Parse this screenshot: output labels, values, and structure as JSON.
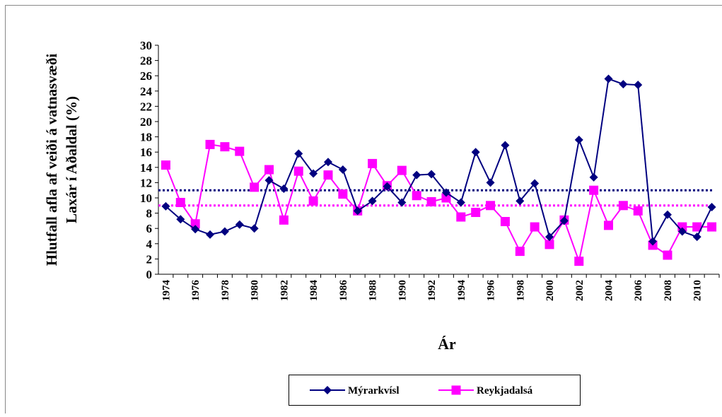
{
  "chart_data": {
    "type": "line",
    "y_title_lines": [
      "Hlutfall afla af veiði á vatnasvæði",
      "Laxár í Aðaldal (%)"
    ],
    "x_title": "Ár",
    "categories": [
      "1974",
      null,
      "1976",
      null,
      "1978",
      null,
      "1980",
      null,
      "1982",
      null,
      "1984",
      null,
      "1986",
      null,
      "1988",
      null,
      "1990",
      null,
      "1992",
      null,
      "1994",
      null,
      "1996",
      null,
      "1998",
      null,
      "2000",
      null,
      "2002",
      null,
      "2004",
      null,
      "2006",
      null,
      "2008",
      null,
      "2010",
      null
    ],
    "series": [
      {
        "name": "Mýrarkvísl",
        "color": "#000080",
        "marker": "diamond",
        "values": [
          8.9,
          7.2,
          5.9,
          5.2,
          5.6,
          6.5,
          6.0,
          12.3,
          11.2,
          15.8,
          13.2,
          14.7,
          13.7,
          8.3,
          9.6,
          11.5,
          9.4,
          13.0,
          13.1,
          10.7,
          9.4,
          16.0,
          12.0,
          16.9,
          9.6,
          11.9,
          4.9,
          7.0,
          17.6,
          12.7,
          25.6,
          24.9,
          24.8,
          4.3,
          7.8,
          5.6,
          4.9,
          8.8
        ]
      },
      {
        "name": "Reykjadalsá",
        "color": "#ff00ff",
        "marker": "square",
        "values": [
          14.3,
          9.4,
          6.6,
          17.0,
          16.7,
          16.1,
          11.4,
          13.7,
          7.1,
          13.5,
          9.6,
          13.0,
          10.5,
          8.3,
          14.5,
          11.6,
          13.6,
          10.3,
          9.5,
          10.0,
          7.5,
          8.1,
          9.0,
          6.9,
          3.0,
          6.2,
          3.9,
          7.1,
          1.7,
          11.0,
          6.4,
          9.0,
          8.3,
          3.8,
          2.5,
          6.2,
          6.2,
          6.2
        ]
      }
    ],
    "average_lines": [
      {
        "value": 11.0,
        "color": "#000080"
      },
      {
        "value": 9.0,
        "color": "#ff00ff"
      }
    ],
    "ylim": [
      0,
      30
    ],
    "yticks": [
      0,
      2,
      4,
      6,
      8,
      10,
      12,
      14,
      16,
      18,
      20,
      22,
      24,
      26,
      28,
      30
    ],
    "legend": "bottom"
  }
}
